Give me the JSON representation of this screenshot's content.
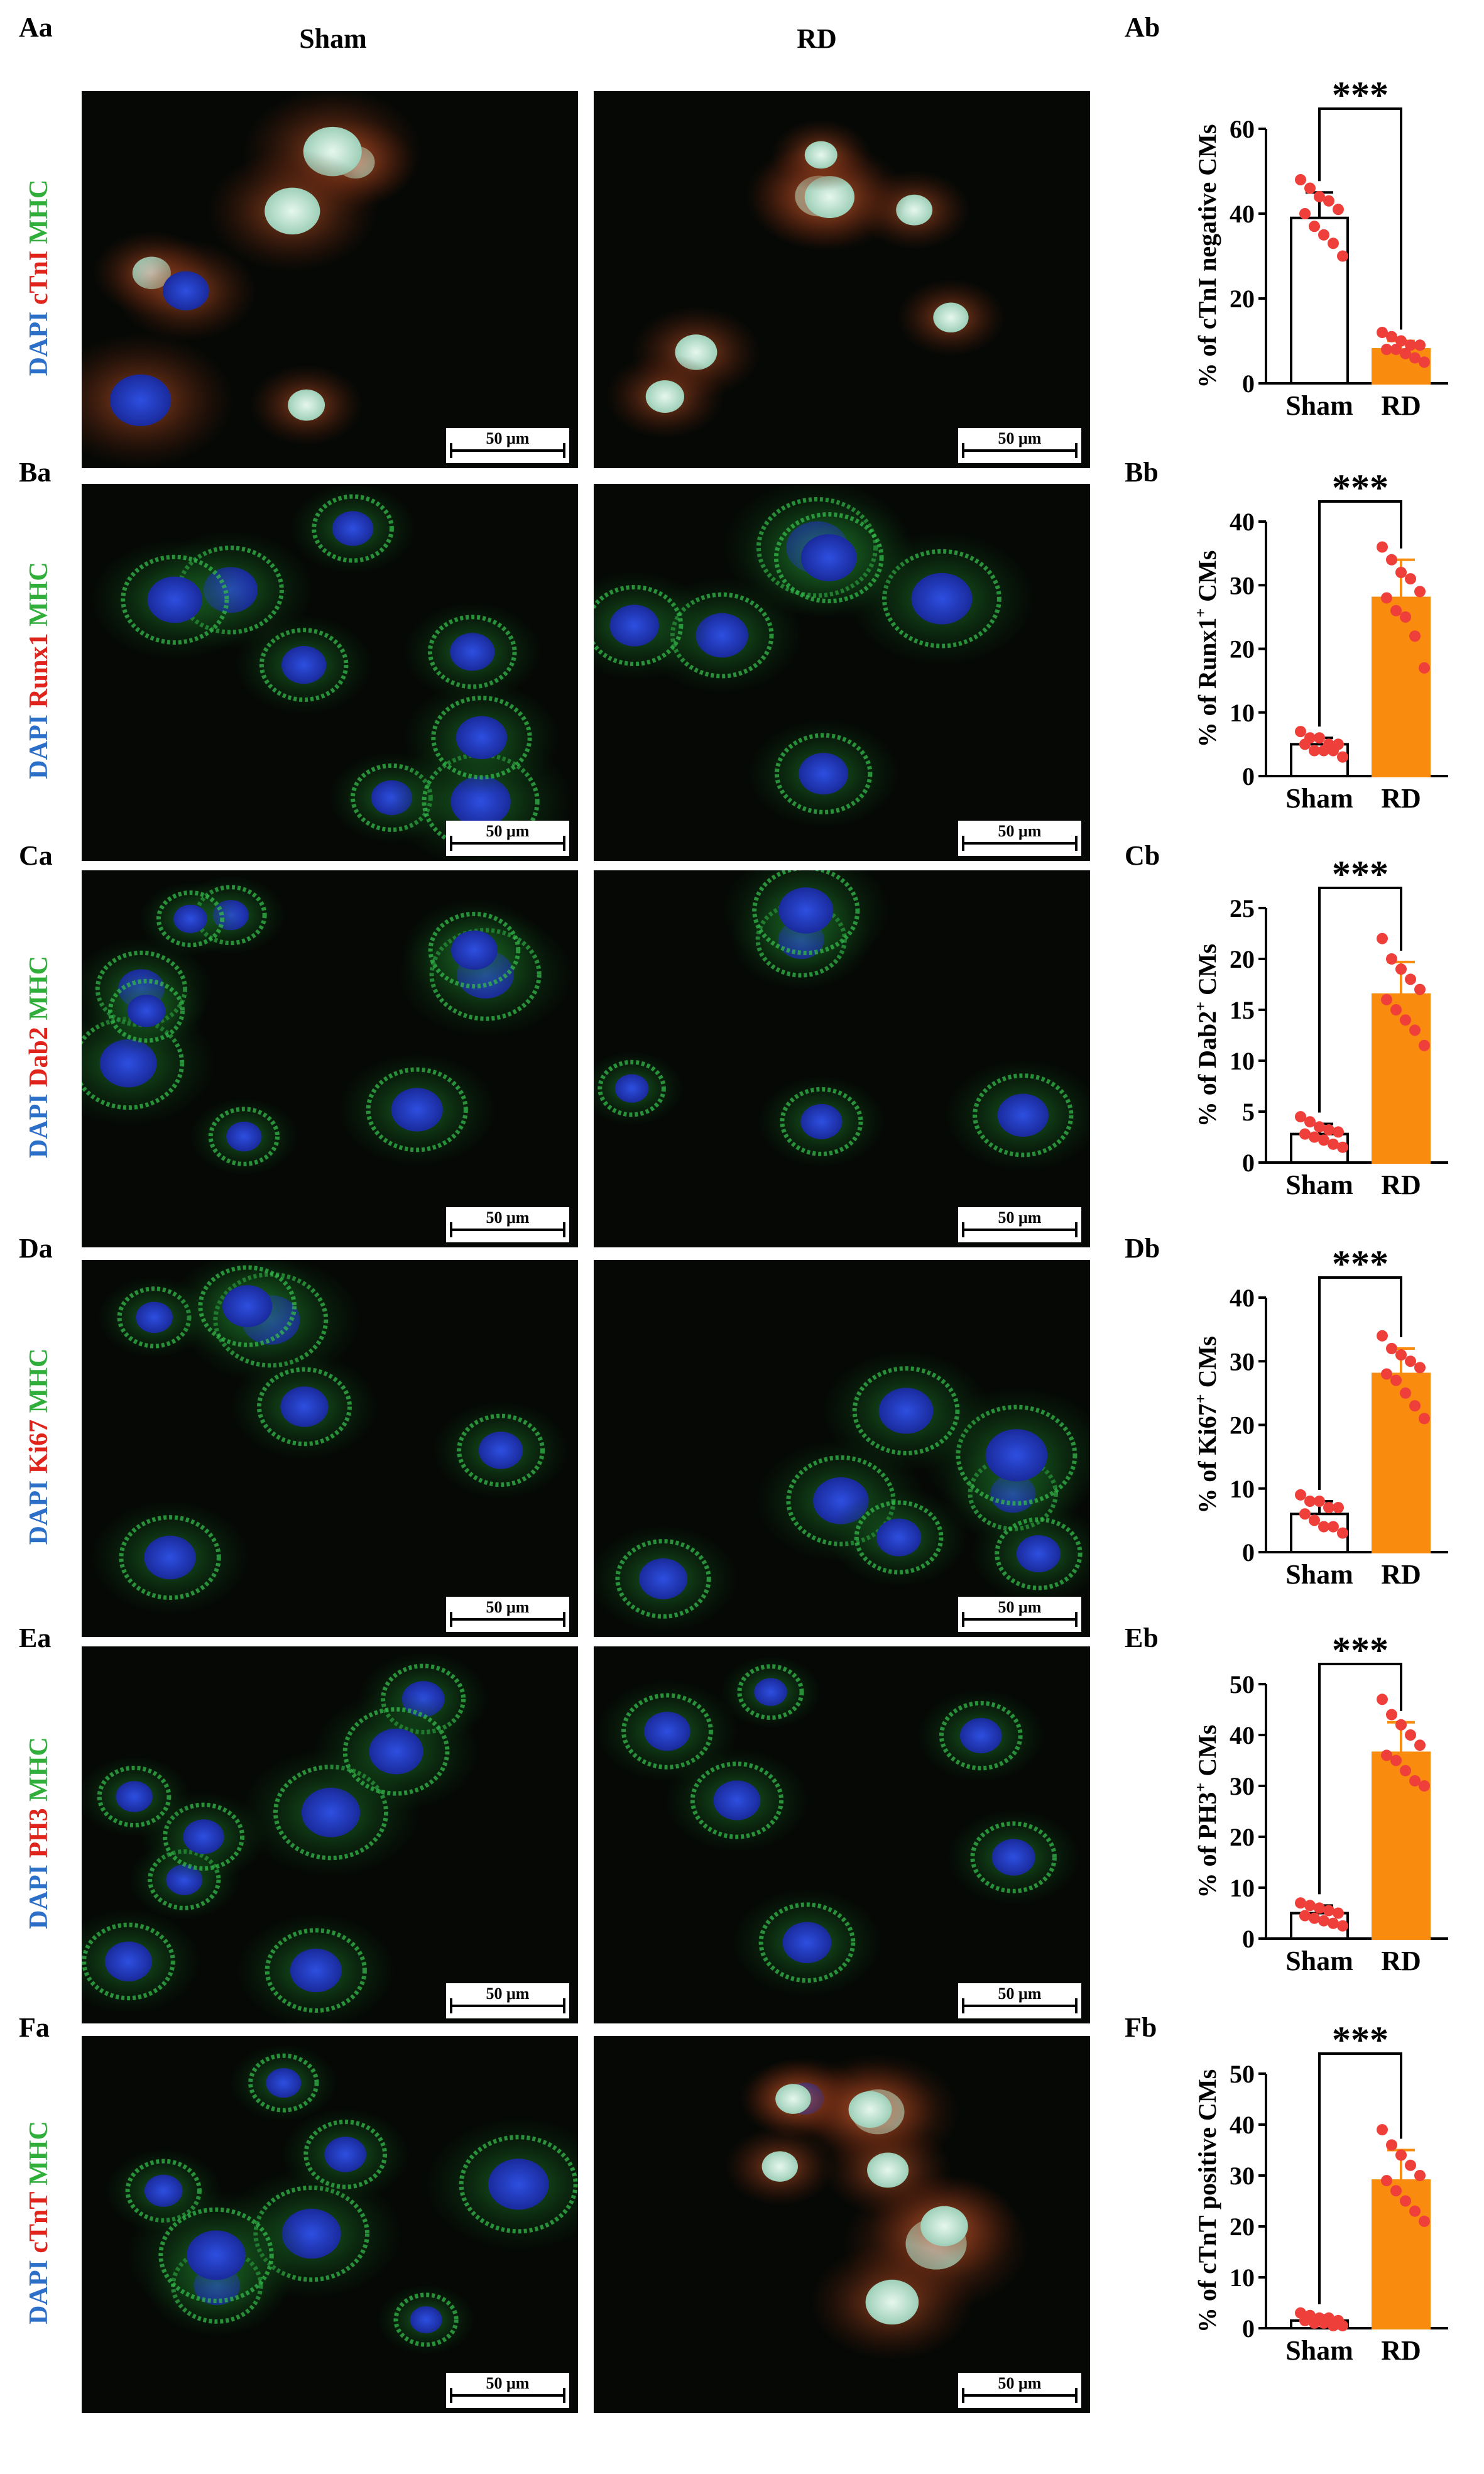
{
  "column_headers": {
    "sham": "Sham",
    "rd": "RD"
  },
  "scale_bar_label": "50 μm",
  "rows": [
    {
      "label_a": "Aa",
      "label_b": "Ab",
      "stain": [
        {
          "text": "DAPI",
          "color": "#2b6fc9"
        },
        {
          "text": " cTnI",
          "color": "#e0241b"
        },
        {
          "text": " MHC",
          "color": "#2fae3a"
        }
      ]
    },
    {
      "label_a": "Ba",
      "label_b": "Bb",
      "stain": [
        {
          "text": "DAPI",
          "color": "#2b6fc9"
        },
        {
          "text": " Runx1",
          "color": "#e0241b"
        },
        {
          "text": " MHC",
          "color": "#2fae3a"
        }
      ]
    },
    {
      "label_a": "Ca",
      "label_b": "Cb",
      "stain": [
        {
          "text": "DAPI",
          "color": "#2b6fc9"
        },
        {
          "text": " Dab2",
          "color": "#e0241b"
        },
        {
          "text": " MHC",
          "color": "#2fae3a"
        }
      ]
    },
    {
      "label_a": "Da",
      "label_b": "Db",
      "stain": [
        {
          "text": "DAPI",
          "color": "#2b6fc9"
        },
        {
          "text": " Ki67",
          "color": "#e0241b"
        },
        {
          "text": " MHC",
          "color": "#2fae3a"
        }
      ]
    },
    {
      "label_a": "Ea",
      "label_b": "Eb",
      "stain": [
        {
          "text": "DAPI",
          "color": "#2b6fc9"
        },
        {
          "text": " PH3",
          "color": "#e0241b"
        },
        {
          "text": " MHC",
          "color": "#2fae3a"
        }
      ]
    },
    {
      "label_a": "Fa",
      "label_b": "Fb",
      "stain": [
        {
          "text": "DAPI",
          "color": "#2b6fc9"
        },
        {
          "text": " cTnT",
          "color": "#e0241b"
        },
        {
          "text": " MHC",
          "color": "#2fae3a"
        }
      ]
    }
  ],
  "chart_data": [
    {
      "type": "bar",
      "ylabel": "% of cTnI negative CMs",
      "ylabel_sup": "",
      "ylabel_post": "",
      "categories": [
        "Sham",
        "RD"
      ],
      "values": [
        39,
        8
      ],
      "errors": [
        6,
        2
      ],
      "ylim": [
        0,
        60
      ],
      "yticks": [
        0,
        20,
        40,
        60
      ],
      "points": [
        [
          48,
          46,
          44,
          43,
          41,
          40,
          37,
          35,
          33,
          30
        ],
        [
          12,
          11,
          10,
          9,
          9,
          8,
          8,
          7,
          6,
          5
        ]
      ],
      "significance": "***",
      "bar_colors": [
        "#ffffff",
        "#f98c0f"
      ]
    },
    {
      "type": "bar",
      "ylabel": "% of Runx1",
      "ylabel_sup": "+",
      "ylabel_post": " CMs",
      "categories": [
        "Sham",
        "RD"
      ],
      "values": [
        5,
        28
      ],
      "errors": [
        1,
        6
      ],
      "ylim": [
        0,
        40
      ],
      "yticks": [
        0,
        10,
        20,
        30,
        40
      ],
      "points": [
        [
          7,
          6,
          6,
          5,
          5,
          5,
          4,
          4,
          4,
          3
        ],
        [
          36,
          34,
          32,
          31,
          29,
          28,
          26,
          25,
          22,
          17
        ]
      ],
      "significance": "***",
      "bar_colors": [
        "#ffffff",
        "#f98c0f"
      ]
    },
    {
      "type": "bar",
      "ylabel": "% of Dab2",
      "ylabel_sup": "+",
      "ylabel_post": " CMs",
      "categories": [
        "Sham",
        "RD"
      ],
      "values": [
        2.8,
        16.5
      ],
      "errors": [
        1,
        3.2
      ],
      "ylim": [
        0,
        25
      ],
      "yticks": [
        0,
        5,
        10,
        15,
        20,
        25
      ],
      "points": [
        [
          4.5,
          4,
          3.5,
          3.2,
          3,
          2.8,
          2.5,
          2.2,
          1.8,
          1.5
        ],
        [
          22,
          20,
          19,
          18,
          17,
          16,
          15,
          14,
          13,
          11.5
        ]
      ],
      "significance": "***",
      "bar_colors": [
        "#ffffff",
        "#f98c0f"
      ]
    },
    {
      "type": "bar",
      "ylabel": "% of Ki67",
      "ylabel_sup": "+",
      "ylabel_post": " CMs",
      "categories": [
        "Sham",
        "RD"
      ],
      "values": [
        6,
        28
      ],
      "errors": [
        2,
        4
      ],
      "ylim": [
        0,
        40
      ],
      "yticks": [
        0,
        10,
        20,
        30,
        40
      ],
      "points": [
        [
          9,
          8,
          8,
          7,
          7,
          6,
          5,
          4,
          4,
          3
        ],
        [
          34,
          32,
          31,
          30,
          29,
          28,
          27,
          25,
          23,
          21
        ]
      ],
      "significance": "***",
      "bar_colors": [
        "#ffffff",
        "#f98c0f"
      ]
    },
    {
      "type": "bar",
      "ylabel": "% of PH3",
      "ylabel_sup": "+",
      "ylabel_post": " CMs",
      "categories": [
        "Sham",
        "RD"
      ],
      "values": [
        5,
        36.5
      ],
      "errors": [
        1.5,
        6
      ],
      "ylim": [
        0,
        50
      ],
      "yticks": [
        0,
        10,
        20,
        30,
        40,
        50
      ],
      "points": [
        [
          7,
          6.5,
          6,
          5.5,
          5,
          4.5,
          4,
          3.5,
          3,
          2.5
        ],
        [
          47,
          44,
          42,
          40,
          38,
          36,
          35,
          33,
          31,
          30
        ]
      ],
      "significance": "***",
      "bar_colors": [
        "#ffffff",
        "#f98c0f"
      ]
    },
    {
      "type": "bar",
      "ylabel": "% of cTnT positive CMs",
      "ylabel_sup": "",
      "ylabel_post": "",
      "categories": [
        "Sham",
        "RD"
      ],
      "values": [
        1.5,
        29
      ],
      "errors": [
        1,
        6
      ],
      "ylim": [
        0,
        50
      ],
      "yticks": [
        0,
        10,
        20,
        30,
        40,
        50
      ],
      "points": [
        [
          3,
          2.5,
          2,
          2,
          1.5,
          1.5,
          1,
          1,
          0.5,
          0.5
        ],
        [
          39,
          36,
          34,
          32,
          30,
          29,
          27,
          25,
          23,
          21
        ]
      ],
      "significance": "***",
      "bar_colors": [
        "#ffffff",
        "#f98c0f"
      ]
    }
  ]
}
